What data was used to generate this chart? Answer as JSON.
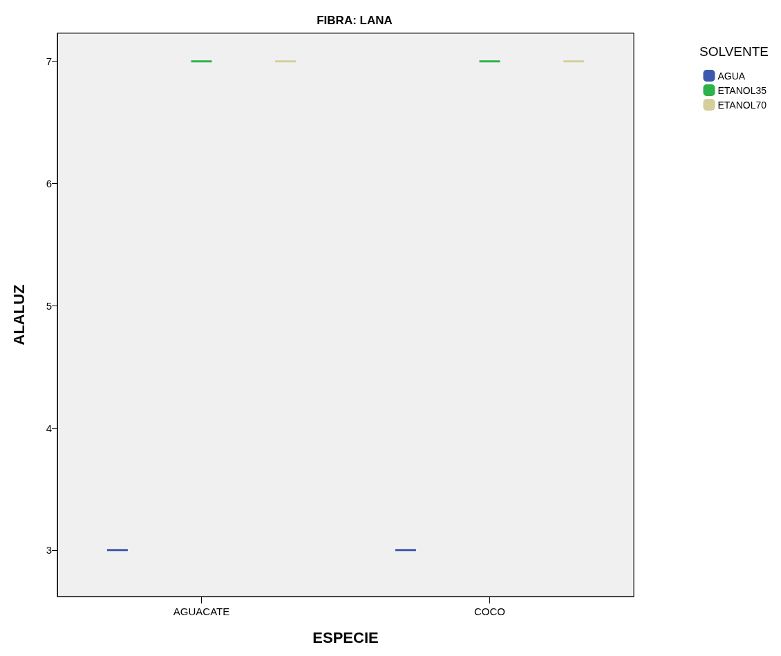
{
  "chart_data": {
    "type": "box",
    "title": "FIBRA: LANA",
    "xlabel": "ESPECIE",
    "ylabel": "ALALUZ",
    "legend_title": "SOLVENTE",
    "categories": [
      "AGUACATE",
      "COCO"
    ],
    "series": [
      {
        "name": "AGUA",
        "color": "#3c5aad",
        "boxes": [
          {
            "low": 3,
            "q1": 3,
            "median": 3,
            "q3": 3,
            "high": 3
          },
          {
            "low": 3,
            "q1": 3,
            "median": 3,
            "q3": 3,
            "high": 3
          }
        ]
      },
      {
        "name": "ETANOL35",
        "color": "#2db34a",
        "boxes": [
          {
            "low": 7,
            "q1": 7,
            "median": 7,
            "q3": 7,
            "high": 7
          },
          {
            "low": 7,
            "q1": 7,
            "median": 7,
            "q3": 7,
            "high": 7
          }
        ]
      },
      {
        "name": "ETANOL70",
        "color": "#d4cf9a",
        "boxes": [
          {
            "low": 7,
            "q1": 7,
            "median": 7,
            "q3": 7,
            "high": 7
          },
          {
            "low": 7,
            "q1": 7,
            "median": 7,
            "q3": 7,
            "high": 7
          }
        ]
      }
    ],
    "ylim": [
      2.62,
      7.23
    ],
    "yticks": [
      3,
      4,
      5,
      6,
      7
    ],
    "grid": false,
    "legend": "top right"
  }
}
